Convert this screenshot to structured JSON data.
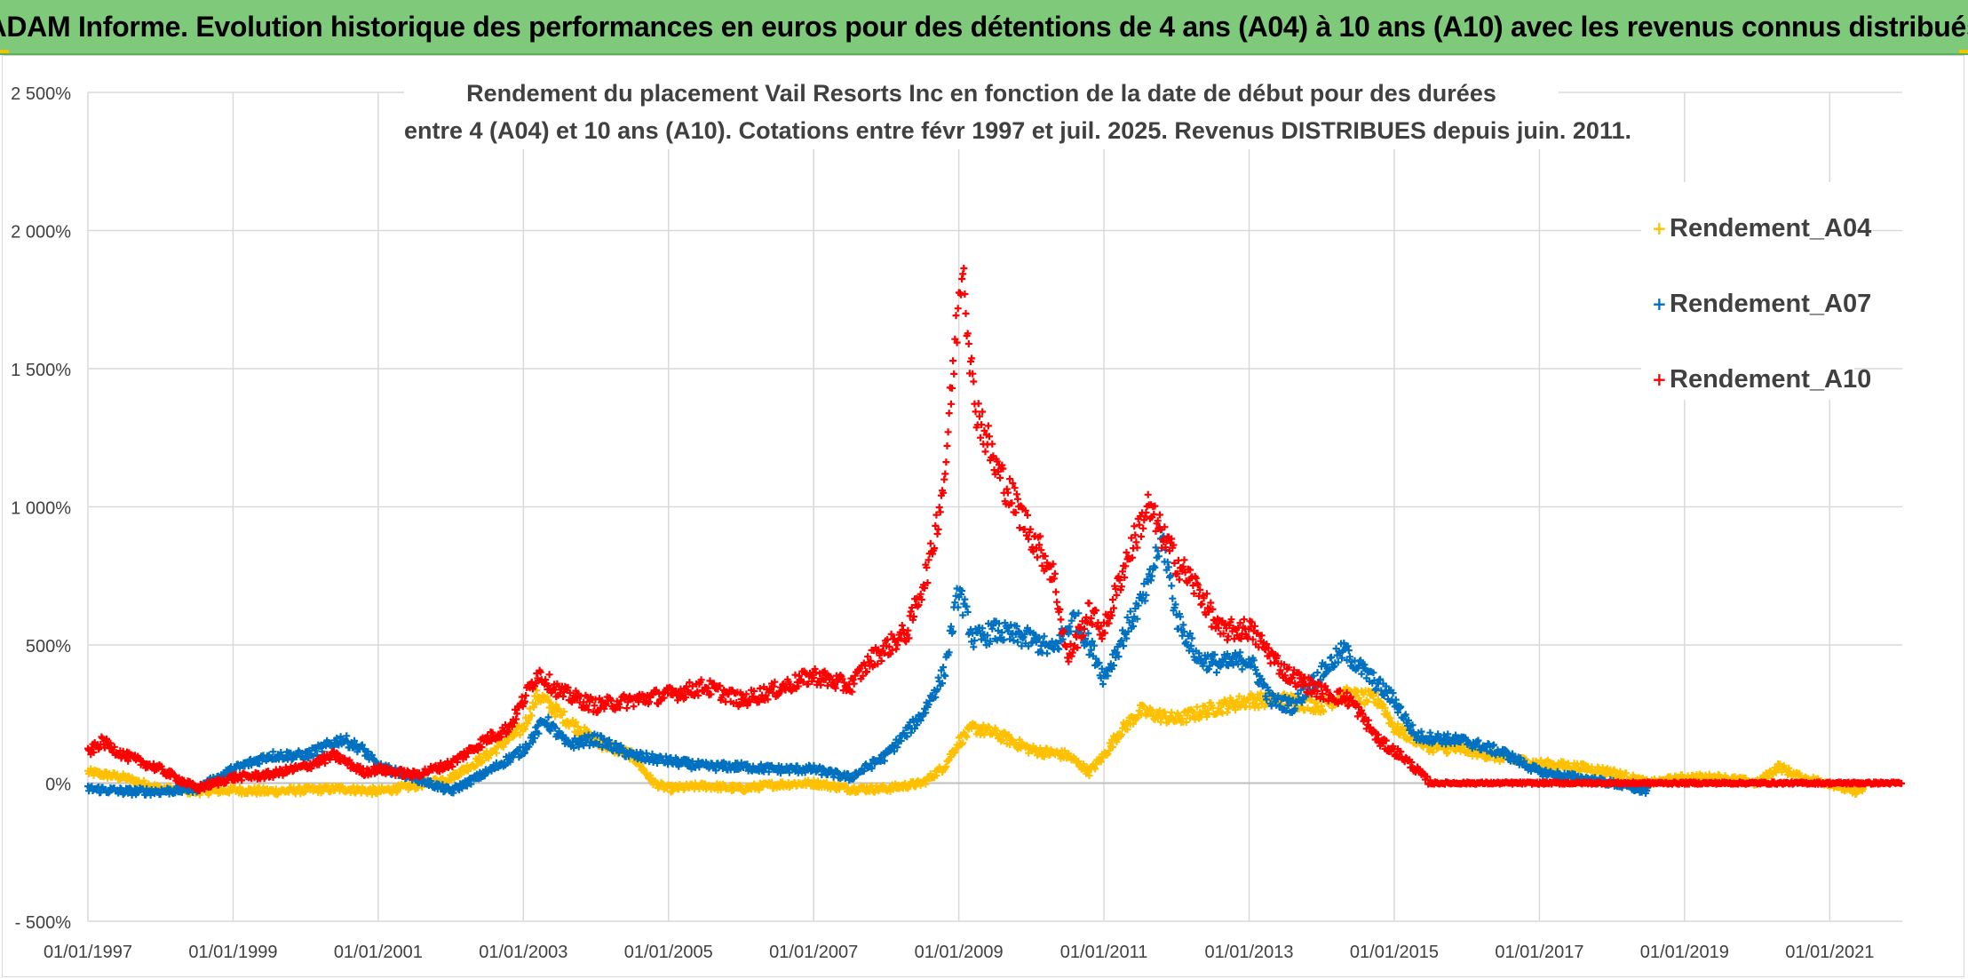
{
  "banner": {
    "title": "ADAM Informe. Evolution historique des performances en euros pour des détentions de 4 ans (A04) à 10 ans (A10) avec les revenus connus distribués"
  },
  "chart_data": {
    "type": "scatter",
    "title_lines": [
      "Rendement du placement Vail Resorts Inc en fonction de la date de début pour des durées",
      "entre 4 (A04) et 10 ans (A10). Cotations entre févr 1997 et juil. 2025. Revenus DISTRIBUES depuis juin. 2011."
    ],
    "x_ticks": [
      "01/01/1997",
      "01/01/1999",
      "01/01/2001",
      "01/01/2003",
      "01/01/2005",
      "01/01/2007",
      "01/01/2009",
      "01/01/2011",
      "01/01/2013",
      "01/01/2015",
      "01/01/2017",
      "01/01/2019",
      "01/01/2021"
    ],
    "xlim": [
      1997.0,
      2022.0
    ],
    "y_ticks": [
      -500,
      0,
      500,
      1000,
      1500,
      2000,
      2500
    ],
    "y_tick_labels": [
      "- 500%",
      "0%",
      "500%",
      "1 000%",
      "1 500%",
      "2 000%",
      "2 500%"
    ],
    "ylim": [
      -500,
      2500
    ],
    "grid": true,
    "legend_position": "right",
    "series": [
      {
        "name": "Rendement_A04",
        "color": "#ffc000",
        "x_end": 2021.5,
        "points": [
          [
            1997.0,
            40
          ],
          [
            1997.5,
            20
          ],
          [
            1998.0,
            -20
          ],
          [
            1998.5,
            -30
          ],
          [
            1999.0,
            -25
          ],
          [
            1999.5,
            -30
          ],
          [
            2000.0,
            -25
          ],
          [
            2000.5,
            -20
          ],
          [
            2001.0,
            -30
          ],
          [
            2001.5,
            -10
          ],
          [
            2002.0,
            20
          ],
          [
            2002.5,
            100
          ],
          [
            2003.0,
            200
          ],
          [
            2003.2,
            320
          ],
          [
            2003.5,
            250
          ],
          [
            2004.0,
            150
          ],
          [
            2004.5,
            100
          ],
          [
            2004.8,
            0
          ],
          [
            2005.0,
            -20
          ],
          [
            2005.5,
            -10
          ],
          [
            2006.0,
            -20
          ],
          [
            2006.5,
            -5
          ],
          [
            2007.0,
            0
          ],
          [
            2007.5,
            -20
          ],
          [
            2008.0,
            -20
          ],
          [
            2008.5,
            0
          ],
          [
            2008.8,
            60
          ],
          [
            2009.0,
            150
          ],
          [
            2009.2,
            200
          ],
          [
            2009.5,
            180
          ],
          [
            2010.0,
            120
          ],
          [
            2010.5,
            100
          ],
          [
            2010.8,
            40
          ],
          [
            2011.0,
            100
          ],
          [
            2011.2,
            180
          ],
          [
            2011.5,
            260
          ],
          [
            2012.0,
            230
          ],
          [
            2012.5,
            270
          ],
          [
            2013.0,
            300
          ],
          [
            2013.5,
            300
          ],
          [
            2014.0,
            280
          ],
          [
            2014.3,
            320
          ],
          [
            2014.8,
            300
          ],
          [
            2015.0,
            200
          ],
          [
            2015.5,
            130
          ],
          [
            2016.0,
            120
          ],
          [
            2016.5,
            90
          ],
          [
            2017.0,
            70
          ],
          [
            2017.5,
            60
          ],
          [
            2018.0,
            40
          ],
          [
            2018.5,
            0
          ],
          [
            2019.0,
            20
          ],
          [
            2019.5,
            20
          ],
          [
            2020.0,
            0
          ],
          [
            2020.3,
            60
          ],
          [
            2020.6,
            20
          ],
          [
            2021.0,
            0
          ],
          [
            2021.3,
            -30
          ],
          [
            2021.5,
            -20
          ]
        ]
      },
      {
        "name": "Rendement_A07",
        "color": "#0070c0",
        "x_end": 2018.5,
        "points": [
          [
            1997.0,
            -20
          ],
          [
            1997.5,
            -30
          ],
          [
            1998.0,
            -30
          ],
          [
            1998.5,
            -20
          ],
          [
            1999.0,
            50
          ],
          [
            1999.5,
            100
          ],
          [
            2000.0,
            100
          ],
          [
            2000.5,
            160
          ],
          [
            2000.8,
            120
          ],
          [
            2001.0,
            60
          ],
          [
            2001.5,
            20
          ],
          [
            2002.0,
            -30
          ],
          [
            2002.5,
            40
          ],
          [
            2003.0,
            120
          ],
          [
            2003.3,
            230
          ],
          [
            2003.6,
            140
          ],
          [
            2004.0,
            160
          ],
          [
            2004.5,
            100
          ],
          [
            2005.0,
            80
          ],
          [
            2005.5,
            60
          ],
          [
            2006.0,
            60
          ],
          [
            2006.5,
            50
          ],
          [
            2007.0,
            50
          ],
          [
            2007.5,
            20
          ],
          [
            2008.0,
            100
          ],
          [
            2008.5,
            250
          ],
          [
            2008.8,
            400
          ],
          [
            2009.0,
            700
          ],
          [
            2009.2,
            520
          ],
          [
            2009.5,
            550
          ],
          [
            2010.0,
            520
          ],
          [
            2010.3,
            480
          ],
          [
            2010.6,
            600
          ],
          [
            2010.9,
            450
          ],
          [
            2011.0,
            380
          ],
          [
            2011.3,
            550
          ],
          [
            2011.6,
            700
          ],
          [
            2011.8,
            900
          ],
          [
            2012.0,
            600
          ],
          [
            2012.3,
            450
          ],
          [
            2012.6,
            430
          ],
          [
            2013.0,
            450
          ],
          [
            2013.3,
            300
          ],
          [
            2013.6,
            280
          ],
          [
            2014.0,
            400
          ],
          [
            2014.3,
            480
          ],
          [
            2014.6,
            400
          ],
          [
            2015.0,
            300
          ],
          [
            2015.3,
            170
          ],
          [
            2015.7,
            160
          ],
          [
            2016.0,
            150
          ],
          [
            2016.5,
            110
          ],
          [
            2017.0,
            40
          ],
          [
            2017.5,
            20
          ],
          [
            2018.0,
            0
          ],
          [
            2018.5,
            -30
          ]
        ]
      },
      {
        "name": "Rendement_A10",
        "color": "#ff0000",
        "x_end": 2022.0,
        "points": [
          [
            1997.0,
            110
          ],
          [
            1997.2,
            150
          ],
          [
            1997.5,
            100
          ],
          [
            1998.0,
            50
          ],
          [
            1998.5,
            -20
          ],
          [
            1999.0,
            20
          ],
          [
            1999.5,
            30
          ],
          [
            2000.0,
            60
          ],
          [
            2000.4,
            100
          ],
          [
            2000.8,
            40
          ],
          [
            2001.0,
            50
          ],
          [
            2001.5,
            30
          ],
          [
            2002.0,
            70
          ],
          [
            2002.5,
            160
          ],
          [
            2002.8,
            200
          ],
          [
            2003.0,
            300
          ],
          [
            2003.2,
            400
          ],
          [
            2003.5,
            330
          ],
          [
            2004.0,
            280
          ],
          [
            2004.5,
            300
          ],
          [
            2005.0,
            320
          ],
          [
            2005.5,
            350
          ],
          [
            2006.0,
            300
          ],
          [
            2006.5,
            340
          ],
          [
            2007.0,
            390
          ],
          [
            2007.5,
            350
          ],
          [
            2007.8,
            450
          ],
          [
            2008.3,
            550
          ],
          [
            2008.6,
            800
          ],
          [
            2008.8,
            1100
          ],
          [
            2009.0,
            1750
          ],
          [
            2009.05,
            1920
          ],
          [
            2009.2,
            1400
          ],
          [
            2009.5,
            1150
          ],
          [
            2010.0,
            900
          ],
          [
            2010.3,
            760
          ],
          [
            2010.5,
            450
          ],
          [
            2010.8,
            620
          ],
          [
            2011.0,
            550
          ],
          [
            2011.3,
            800
          ],
          [
            2011.6,
            1000
          ],
          [
            2012.0,
            800
          ],
          [
            2012.3,
            700
          ],
          [
            2012.6,
            550
          ],
          [
            2013.0,
            560
          ],
          [
            2013.5,
            400
          ],
          [
            2014.0,
            330
          ],
          [
            2014.4,
            300
          ],
          [
            2014.8,
            150
          ],
          [
            2015.1,
            100
          ],
          [
            2015.5,
            0
          ],
          [
            2016.0,
            0
          ],
          [
            2017.0,
            0
          ],
          [
            2018.0,
            0
          ],
          [
            2019.0,
            0
          ],
          [
            2020.0,
            0
          ],
          [
            2021.0,
            0
          ],
          [
            2022.0,
            0
          ]
        ]
      }
    ]
  }
}
